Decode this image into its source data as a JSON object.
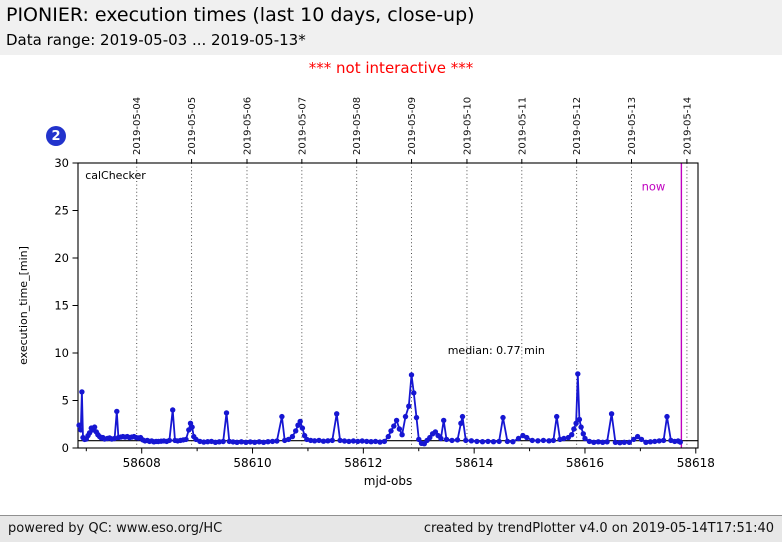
{
  "header": {
    "title": "PIONIER: execution times (last 10 days, close-up)",
    "subtitle": "Data range: 2019-05-03 ... 2019-05-13*"
  },
  "figure": {
    "banner": "*** not interactive ***",
    "banner_color": "#ff0000",
    "badge_label": "2",
    "badge_color": "#2233cc"
  },
  "chart_data": {
    "type": "scatter",
    "xlabel": "mjd-obs",
    "ylabel": "execution_time_[min]",
    "xlim": [
      58606.85,
      58618.04
    ],
    "ylim": [
      0,
      30
    ],
    "yticks": [
      0,
      5,
      10,
      15,
      20,
      25,
      30
    ],
    "xticks_major": [
      58608,
      58610,
      58612,
      58614,
      58616,
      58618
    ],
    "xticks_minor": [
      58607,
      58609,
      58611,
      58613,
      58615,
      58617
    ],
    "grid": "vertical-dotted",
    "top_axis_dates": [
      {
        "label": "2019-05-04",
        "mjd": 58607.91
      },
      {
        "label": "2019-05-05",
        "mjd": 58608.9
      },
      {
        "label": "2019-05-06",
        "mjd": 58609.9
      },
      {
        "label": "2019-05-07",
        "mjd": 58610.89
      },
      {
        "label": "2019-05-08",
        "mjd": 58611.88
      },
      {
        "label": "2019-05-09",
        "mjd": 58612.87
      },
      {
        "label": "2019-05-10",
        "mjd": 58613.87
      },
      {
        "label": "2019-05-11",
        "mjd": 58614.86
      },
      {
        "label": "2019-05-12",
        "mjd": 58615.85
      },
      {
        "label": "2019-05-13",
        "mjd": 58616.84
      },
      {
        "label": "2019-05-14",
        "mjd": 58617.84
      }
    ],
    "median": {
      "value": 0.77,
      "line_color": "#000000"
    },
    "now": {
      "mjd": 58617.74,
      "line_color": "#c000c0"
    },
    "annotations": [
      {
        "name": "inner-label-calchecker",
        "text": "calChecker",
        "x": 58606.98,
        "y": 28.3,
        "color": "#000000",
        "anchor": "start",
        "size": 11
      },
      {
        "name": "median-annotation",
        "text": "median: 0.77 min",
        "x": 58614.4,
        "y": 9.9,
        "color": "#000000",
        "anchor": "middle",
        "size": 11
      },
      {
        "name": "now-label",
        "text": "now",
        "x": 58617.45,
        "y": 27.1,
        "color": "#c000c0",
        "anchor": "end",
        "size": 11.5
      }
    ],
    "series": [
      {
        "name": "calChecker",
        "color": "#1616d2",
        "points": [
          [
            58606.87,
            2.4
          ],
          [
            58606.9,
            1.9
          ],
          [
            58606.92,
            5.9
          ],
          [
            58606.94,
            1.1
          ],
          [
            58606.97,
            0.9
          ],
          [
            58607.0,
            0.95
          ],
          [
            58607.03,
            1.3
          ],
          [
            58607.06,
            1.6
          ],
          [
            58607.09,
            2.1
          ],
          [
            58607.12,
            1.9
          ],
          [
            58607.15,
            2.2
          ],
          [
            58607.18,
            1.7
          ],
          [
            58607.21,
            1.4
          ],
          [
            58607.24,
            1.2
          ],
          [
            58607.27,
            1.05
          ],
          [
            58607.3,
            1.1
          ],
          [
            58607.33,
            0.95
          ],
          [
            58607.38,
            1.0
          ],
          [
            58607.42,
            1.05
          ],
          [
            58607.46,
            0.95
          ],
          [
            58607.51,
            1.0
          ],
          [
            58607.55,
            3.85
          ],
          [
            58607.58,
            1.1
          ],
          [
            58607.62,
            1.15
          ],
          [
            58607.66,
            1.2
          ],
          [
            58607.7,
            1.15
          ],
          [
            58607.74,
            1.2
          ],
          [
            58607.78,
            1.1
          ],
          [
            58607.82,
            1.15
          ],
          [
            58607.86,
            1.2
          ],
          [
            58607.9,
            1.1
          ],
          [
            58607.94,
            1.05
          ],
          [
            58607.98,
            1.1
          ],
          [
            58608.02,
            0.85
          ],
          [
            58608.06,
            0.75
          ],
          [
            58608.1,
            0.8
          ],
          [
            58608.14,
            0.7
          ],
          [
            58608.18,
            0.75
          ],
          [
            58608.22,
            0.65
          ],
          [
            58608.26,
            0.7
          ],
          [
            58608.3,
            0.68
          ],
          [
            58608.35,
            0.72
          ],
          [
            58608.4,
            0.75
          ],
          [
            58608.45,
            0.7
          ],
          [
            58608.5,
            0.8
          ],
          [
            58608.56,
            4.0
          ],
          [
            58608.6,
            0.8
          ],
          [
            58608.65,
            0.75
          ],
          [
            58608.7,
            0.8
          ],
          [
            58608.75,
            0.85
          ],
          [
            58608.8,
            0.9
          ],
          [
            58608.85,
            1.9
          ],
          [
            58608.88,
            2.6
          ],
          [
            58608.91,
            2.2
          ],
          [
            58608.94,
            1.2
          ],
          [
            58608.98,
            0.9
          ],
          [
            58609.05,
            0.7
          ],
          [
            58609.12,
            0.62
          ],
          [
            58609.19,
            0.66
          ],
          [
            58609.26,
            0.7
          ],
          [
            58609.33,
            0.6
          ],
          [
            58609.4,
            0.65
          ],
          [
            58609.47,
            0.68
          ],
          [
            58609.53,
            3.7
          ],
          [
            58609.58,
            0.7
          ],
          [
            58609.65,
            0.64
          ],
          [
            58609.72,
            0.6
          ],
          [
            58609.8,
            0.65
          ],
          [
            58609.88,
            0.6
          ],
          [
            58609.96,
            0.64
          ],
          [
            58610.04,
            0.6
          ],
          [
            58610.12,
            0.65
          ],
          [
            58610.2,
            0.6
          ],
          [
            58610.28,
            0.66
          ],
          [
            58610.36,
            0.7
          ],
          [
            58610.44,
            0.74
          ],
          [
            58610.53,
            3.3
          ],
          [
            58610.58,
            0.8
          ],
          [
            58610.65,
            0.9
          ],
          [
            58610.72,
            1.2
          ],
          [
            58610.78,
            1.8
          ],
          [
            58610.82,
            2.4
          ],
          [
            58610.86,
            2.8
          ],
          [
            58610.9,
            2.1
          ],
          [
            58610.94,
            1.3
          ],
          [
            58610.98,
            0.9
          ],
          [
            58611.05,
            0.8
          ],
          [
            58611.12,
            0.76
          ],
          [
            58611.2,
            0.8
          ],
          [
            58611.28,
            0.72
          ],
          [
            58611.36,
            0.76
          ],
          [
            58611.44,
            0.8
          ],
          [
            58611.52,
            3.6
          ],
          [
            58611.58,
            0.8
          ],
          [
            58611.66,
            0.74
          ],
          [
            58611.74,
            0.7
          ],
          [
            58611.82,
            0.74
          ],
          [
            58611.9,
            0.7
          ],
          [
            58611.98,
            0.74
          ],
          [
            58612.06,
            0.7
          ],
          [
            58612.14,
            0.66
          ],
          [
            58612.22,
            0.7
          ],
          [
            58612.3,
            0.62
          ],
          [
            58612.38,
            0.7
          ],
          [
            58612.45,
            1.2
          ],
          [
            58612.5,
            1.8
          ],
          [
            58612.55,
            2.3
          ],
          [
            58612.6,
            2.9
          ],
          [
            58612.65,
            2.0
          ],
          [
            58612.7,
            1.4
          ],
          [
            58612.76,
            3.3
          ],
          [
            58612.82,
            4.4
          ],
          [
            58612.87,
            7.7
          ],
          [
            58612.91,
            5.8
          ],
          [
            58612.96,
            3.2
          ],
          [
            58613.0,
            0.9
          ],
          [
            58613.05,
            0.5
          ],
          [
            58613.1,
            0.45
          ],
          [
            58613.15,
            0.8
          ],
          [
            58613.2,
            1.1
          ],
          [
            58613.25,
            1.5
          ],
          [
            58613.3,
            1.7
          ],
          [
            58613.35,
            1.3
          ],
          [
            58613.4,
            1.0
          ],
          [
            58613.45,
            2.9
          ],
          [
            58613.5,
            0.9
          ],
          [
            58613.6,
            0.8
          ],
          [
            58613.7,
            0.85
          ],
          [
            58613.76,
            2.6
          ],
          [
            58613.79,
            3.3
          ],
          [
            58613.85,
            0.8
          ],
          [
            58613.95,
            0.76
          ],
          [
            58614.05,
            0.7
          ],
          [
            58614.15,
            0.66
          ],
          [
            58614.25,
            0.7
          ],
          [
            58614.35,
            0.66
          ],
          [
            58614.45,
            0.7
          ],
          [
            58614.52,
            3.2
          ],
          [
            58614.6,
            0.7
          ],
          [
            58614.7,
            0.66
          ],
          [
            58614.8,
            1.0
          ],
          [
            58614.88,
            1.3
          ],
          [
            58614.95,
            1.1
          ],
          [
            58615.05,
            0.8
          ],
          [
            58615.15,
            0.76
          ],
          [
            58615.25,
            0.8
          ],
          [
            58615.35,
            0.76
          ],
          [
            58615.43,
            0.8
          ],
          [
            58615.49,
            3.3
          ],
          [
            58615.55,
            0.9
          ],
          [
            58615.62,
            1.0
          ],
          [
            58615.7,
            1.1
          ],
          [
            58615.76,
            1.4
          ],
          [
            58615.8,
            2.0
          ],
          [
            58615.84,
            2.6
          ],
          [
            58615.87,
            7.8
          ],
          [
            58615.9,
            3.0
          ],
          [
            58615.93,
            2.2
          ],
          [
            58615.97,
            1.5
          ],
          [
            58616.0,
            1.0
          ],
          [
            58616.08,
            0.7
          ],
          [
            58616.16,
            0.6
          ],
          [
            58616.24,
            0.65
          ],
          [
            58616.32,
            0.6
          ],
          [
            58616.4,
            0.65
          ],
          [
            58616.48,
            3.6
          ],
          [
            58616.55,
            0.6
          ],
          [
            58616.63,
            0.56
          ],
          [
            58616.71,
            0.6
          ],
          [
            58616.8,
            0.6
          ],
          [
            58616.88,
            0.9
          ],
          [
            58616.95,
            1.2
          ],
          [
            58617.02,
            0.9
          ],
          [
            58617.1,
            0.6
          ],
          [
            58617.18,
            0.65
          ],
          [
            58617.26,
            0.7
          ],
          [
            58617.34,
            0.75
          ],
          [
            58617.42,
            0.8
          ],
          [
            58617.48,
            3.3
          ],
          [
            58617.55,
            0.8
          ],
          [
            58617.62,
            0.7
          ],
          [
            58617.68,
            0.74
          ],
          [
            58617.72,
            0.62
          ]
        ]
      }
    ]
  },
  "footer": {
    "left": "powered by QC: www.eso.org/HC",
    "right": "created by trendPlotter v4.0 on 2019-05-14T17:51:40"
  }
}
